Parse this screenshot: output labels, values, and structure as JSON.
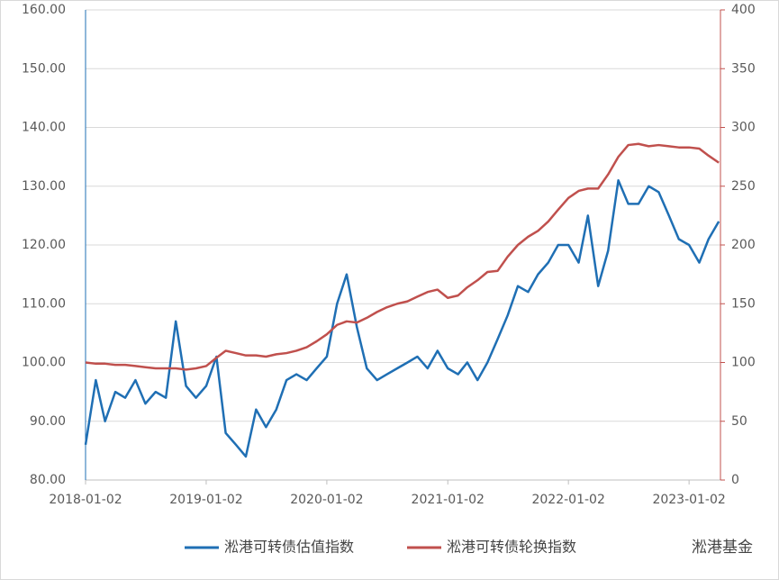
{
  "chart_data": {
    "type": "line",
    "x": [
      "2018-01-02",
      "2018-02-02",
      "2018-03-02",
      "2018-04-02",
      "2018-05-02",
      "2018-06-02",
      "2018-07-02",
      "2018-08-02",
      "2018-09-02",
      "2018-10-02",
      "2018-11-02",
      "2018-12-02",
      "2019-01-02",
      "2019-02-02",
      "2019-03-02",
      "2019-04-02",
      "2019-05-02",
      "2019-06-02",
      "2019-07-02",
      "2019-08-02",
      "2019-09-02",
      "2019-10-02",
      "2019-11-02",
      "2019-12-02",
      "2020-01-02",
      "2020-02-02",
      "2020-03-02",
      "2020-04-02",
      "2020-05-02",
      "2020-06-02",
      "2020-07-02",
      "2020-08-02",
      "2020-09-02",
      "2020-10-02",
      "2020-11-02",
      "2020-12-02",
      "2021-01-02",
      "2021-02-02",
      "2021-03-02",
      "2021-04-02",
      "2021-05-02",
      "2021-06-02",
      "2021-07-02",
      "2021-08-02",
      "2021-09-02",
      "2021-10-02",
      "2021-11-02",
      "2021-12-02",
      "2022-01-02",
      "2022-02-02",
      "2022-03-02",
      "2022-04-02",
      "2022-05-02",
      "2022-06-02",
      "2022-07-02",
      "2022-08-02",
      "2022-09-02",
      "2022-10-02",
      "2022-11-02",
      "2022-12-02",
      "2023-01-02",
      "2023-02-02",
      "2023-03-02",
      "2023-04-02"
    ],
    "series": [
      {
        "name": "淞港可转债估值指数",
        "color": "#1f6fb4",
        "axis": "y",
        "values": [
          86,
          97,
          90,
          95,
          94,
          97,
          93,
          95,
          94,
          107,
          96,
          94,
          96,
          101,
          88,
          86,
          84,
          92,
          89,
          92,
          97,
          98,
          97,
          99,
          101,
          110,
          115,
          106,
          99,
          97,
          98,
          99,
          100,
          101,
          99,
          102,
          99,
          98,
          100,
          97,
          100,
          104,
          108,
          113,
          112,
          115,
          117,
          120,
          120,
          117,
          125,
          113,
          119,
          131,
          127,
          127,
          130,
          129,
          125,
          121,
          120,
          117,
          121,
          124
        ]
      },
      {
        "name": "淞港可转债轮换指数",
        "color": "#c0504d",
        "axis": "y2",
        "values": [
          100,
          99,
          99,
          98,
          98,
          97,
          96,
          95,
          95,
          95,
          94,
          95,
          97,
          104,
          110,
          108,
          106,
          106,
          105,
          107,
          108,
          110,
          113,
          118,
          124,
          132,
          135,
          134,
          138,
          143,
          147,
          150,
          152,
          156,
          160,
          162,
          155,
          157,
          164,
          170,
          177,
          178,
          190,
          200,
          207,
          212,
          220,
          230,
          240,
          246,
          248,
          248,
          260,
          275,
          285,
          286,
          284,
          285,
          284,
          283,
          283,
          282,
          276,
          270
        ]
      }
    ],
    "xlim": [
      "2018-01-02",
      "2023-04-07"
    ],
    "xticks": [
      "2018-01-02",
      "2019-01-02",
      "2020-01-02",
      "2021-01-02",
      "2022-01-02",
      "2023-01-02"
    ],
    "ylim": [
      80,
      160
    ],
    "yticks": [
      {
        "value": 80,
        "label": "80.00"
      },
      {
        "value": 90,
        "label": "90.00"
      },
      {
        "value": 100,
        "label": "100.00"
      },
      {
        "value": 110,
        "label": "110.00"
      },
      {
        "value": 120,
        "label": "120.00"
      },
      {
        "value": 130,
        "label": "130.00"
      },
      {
        "value": 140,
        "label": "140.00"
      },
      {
        "value": 150,
        "label": "150.00"
      },
      {
        "value": 160,
        "label": "160.00"
      }
    ],
    "y2lim": [
      0,
      400
    ],
    "y2ticks": [
      0,
      50,
      100,
      150,
      200,
      250,
      300,
      350,
      400
    ],
    "grid": true,
    "legend": "bottom",
    "watermark": "淞港基金"
  }
}
